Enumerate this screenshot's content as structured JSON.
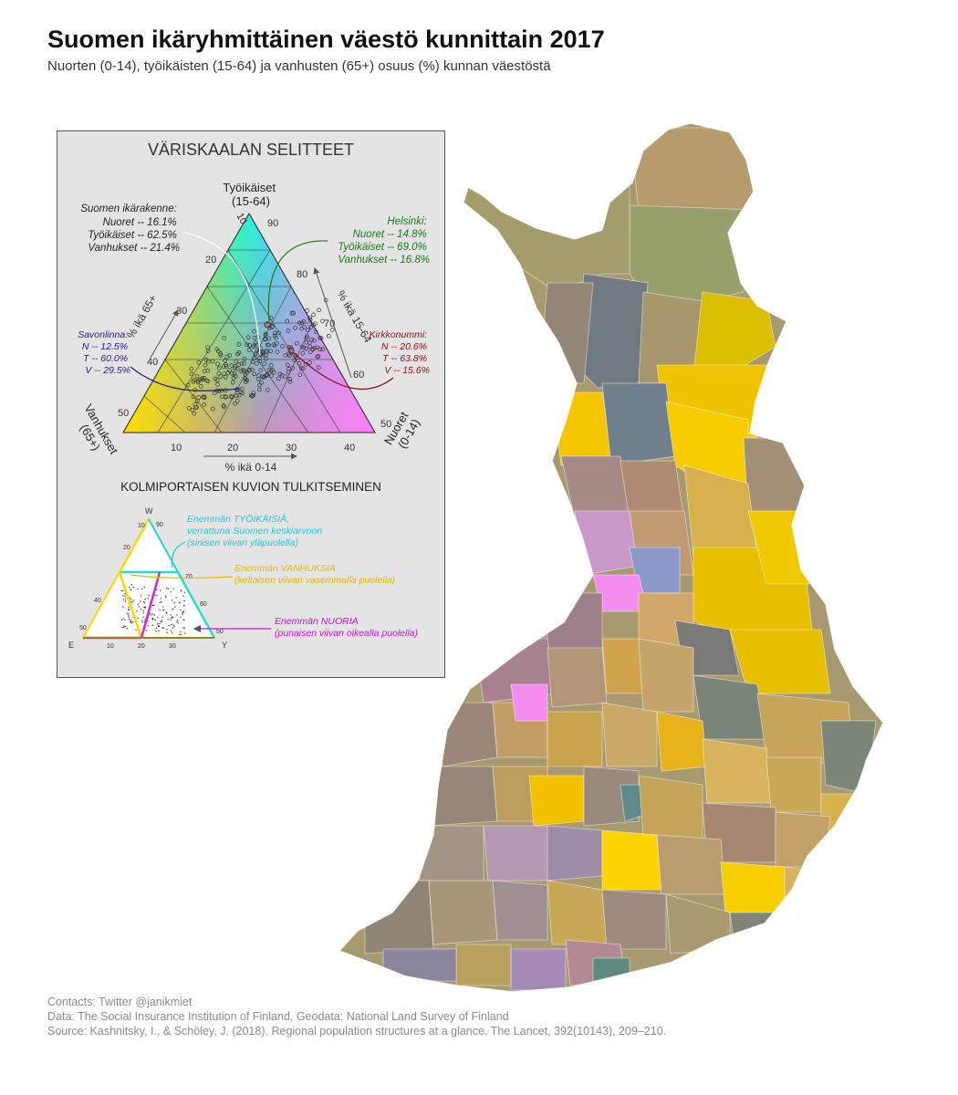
{
  "title": "Suomen ikäryhmittäinen väestö kunnittain 2017",
  "subtitle": "Nuorten (0-14), työikäisten (15-64) ja vanhusten (65+) osuus (%) kunnan väestöstä",
  "legend": {
    "heading": "VÄRISKAALAN SELITTEET",
    "apex_top": [
      "Työikäiset",
      "(15-64)"
    ],
    "apex_left": [
      "Vanhukset",
      "(65+)"
    ],
    "apex_right": [
      "Nuoret",
      "(0-14)"
    ],
    "axis_left_label": "% ikä 65+",
    "axis_right_label": "% ikä 15-64",
    "axis_bottom_label": "% ikä 0-14",
    "ticks_left": [
      "10",
      "20",
      "30",
      "40",
      "50"
    ],
    "ticks_right": [
      "90",
      "80",
      "70",
      "60",
      "50"
    ],
    "ticks_bottom": [
      "10",
      "20",
      "30",
      "40"
    ],
    "annotations": {
      "finland": {
        "title": "Suomen ikärakenne:",
        "lines": [
          "Nuoret -- 16.1%",
          "Työikäiset -- 62.5%",
          "Vanhukset -- 21.4%"
        ],
        "color": "#ffffff"
      },
      "helsinki": {
        "title": "Helsinki:",
        "lines": [
          "Nuoret -- 14.8%",
          "Työikäiset -- 69.0%",
          "Vanhukset --   16.8%"
        ],
        "color": "#1a7a1a"
      },
      "savonlinna": {
        "title": "Savonlinna:",
        "lines": [
          "N --   12.5%",
          "T -- 60.0%",
          "V -- 29.5%"
        ],
        "color": "#1f1f8a"
      },
      "kirkkonummi": {
        "title": "Kirkkonummi:",
        "lines": [
          "N -- 20.6%",
          "T -- 63.8%",
          "V --   15.6%"
        ],
        "color": "#8a1010"
      }
    },
    "interpretation_heading": "KOLMIPORTAISEN KUVION TULKITSEMINEN",
    "mini_apex": {
      "top": "W",
      "left": "E",
      "right": "Y"
    },
    "mini_ticks_left": [
      "10",
      "20",
      "40",
      "50"
    ],
    "mini_ticks_right": [
      "90",
      "70",
      "60",
      "50"
    ],
    "mini_ticks_bottom": [
      "10",
      "20",
      "30"
    ],
    "interpretations": [
      {
        "lines": [
          "Enemmän TYÖIKÄISIÄ,",
          "verrattuna Suomen keskiarvoon",
          "(sinisen viivan yläpuolella)"
        ],
        "color": "#22c8d8"
      },
      {
        "lines": [
          "Enemmän VANHUKSIA",
          "(keltaisen viivan vasemmalla puolella)"
        ],
        "color": "#e8b800"
      },
      {
        "lines": [
          "Enemmän NUORIA",
          "(punaisen viivan oikealla puolella)"
        ],
        "color": "#cc11cc"
      }
    ]
  },
  "credits": [
    "Contacts: Twitter @janikmiet",
    "Data: The Social Insurance Institution of Finland, Geodata: National Land Survey of Finland",
    "Source: Kashnitsky, I., & Schöley, J. (2018). Regional population structures at a glance. The Lancet, 392(10143), 209–210."
  ],
  "colors": {
    "young": "#ff88ff",
    "working": "#00f0e8",
    "old": "#ffd400",
    "mixed_grey": "#8c7f74"
  }
}
